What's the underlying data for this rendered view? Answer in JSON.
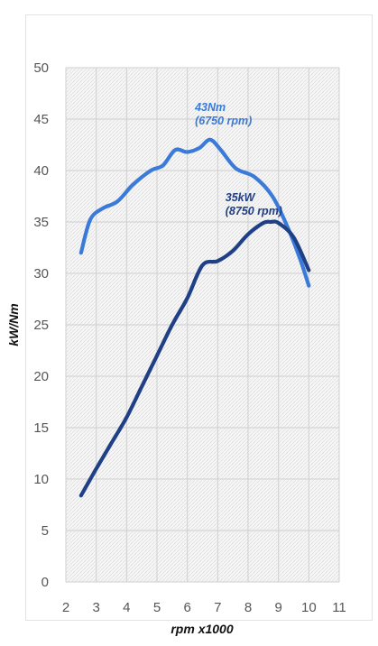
{
  "chart_data": {
    "type": "line",
    "xlabel": "rpm x1000",
    "ylabel": "kW/Nm",
    "xlim": [
      2,
      11
    ],
    "ylim": [
      0,
      50
    ],
    "x_ticks": [
      2,
      3,
      4,
      5,
      6,
      7,
      8,
      9,
      10,
      11
    ],
    "y_ticks": [
      0,
      5,
      10,
      15,
      20,
      25,
      30,
      35,
      40,
      45,
      50
    ],
    "grid": true,
    "series": [
      {
        "color": "#3a7ad9",
        "x": [
          2.5,
          2.8,
          3.2,
          3.7,
          4.2,
          4.8,
          5.2,
          5.6,
          6.0,
          6.4,
          6.75,
          7.1,
          7.6,
          8.2,
          8.8,
          9.3,
          9.7,
          10.0
        ],
        "y": [
          32.0,
          35.2,
          36.3,
          37.0,
          38.6,
          40.0,
          40.5,
          42.0,
          41.8,
          42.2,
          43.0,
          42.0,
          40.2,
          39.4,
          37.5,
          34.5,
          31.5,
          28.8
        ]
      },
      {
        "color": "#1f3f86",
        "x": [
          2.5,
          3.0,
          3.5,
          4.0,
          4.5,
          5.0,
          5.5,
          6.0,
          6.5,
          7.0,
          7.5,
          8.0,
          8.5,
          8.75,
          9.0,
          9.5,
          10.0
        ],
        "y": [
          8.4,
          11.0,
          13.5,
          16.0,
          19.0,
          22.0,
          25.0,
          27.6,
          30.8,
          31.2,
          32.2,
          33.8,
          34.9,
          35.0,
          34.9,
          33.5,
          30.3
        ]
      }
    ],
    "annotations": [
      {
        "lines": [
          "43Nm",
          "(6750 rpm)"
        ],
        "color": "#3a7ad9",
        "x": 6.25,
        "y": 45.8
      },
      {
        "lines": [
          "35kW",
          "(8750 rpm)"
        ],
        "color": "#1f3f86",
        "x": 7.25,
        "y": 37.0
      }
    ]
  }
}
